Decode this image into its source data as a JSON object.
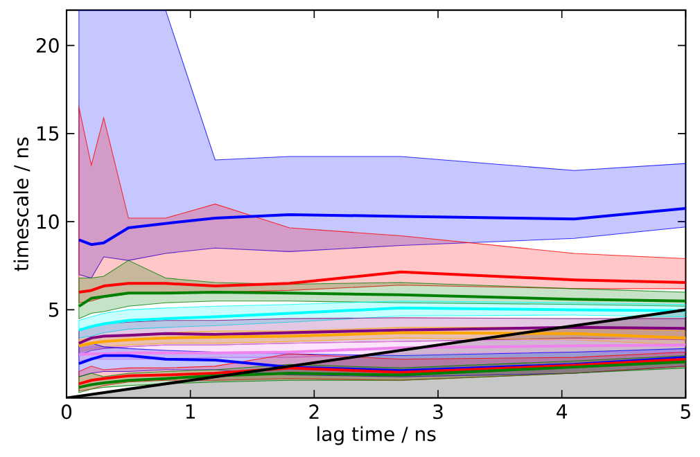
{
  "chart_data": {
    "type": "line",
    "xlabel": "lag time / ns",
    "ylabel": "timescale / ns",
    "x": [
      0.1,
      0.2,
      0.3,
      0.5,
      0.8,
      1.2,
      1.8,
      2.7,
      4.1,
      5.0
    ],
    "xlim": [
      0,
      5
    ],
    "ylim": [
      0,
      22
    ],
    "xticks": [
      0,
      1,
      2,
      3,
      4,
      5
    ],
    "yticks": [
      5,
      10,
      15,
      20
    ],
    "grid": false,
    "line_style": "solid",
    "marker": "none",
    "series": [
      {
        "color": "#0000ff",
        "values": [
          8.97,
          8.7,
          8.8,
          9.65,
          9.9,
          10.2,
          10.4,
          10.3,
          10.15,
          10.75
        ],
        "lower": [
          7.0,
          6.8,
          8.0,
          7.8,
          8.2,
          8.5,
          8.3,
          8.65,
          9.05,
          9.7
        ],
        "upper": [
          22,
          22,
          22,
          22,
          22,
          13.5,
          13.7,
          13.7,
          12.9,
          13.3
        ]
      },
      {
        "color": "#ff0000",
        "values": [
          6.0,
          6.1,
          6.35,
          6.5,
          6.5,
          6.35,
          6.5,
          7.15,
          6.7,
          6.55
        ],
        "lower": [
          5.4,
          5.5,
          5.7,
          5.9,
          6.0,
          6.0,
          6.1,
          6.4,
          6.2,
          6.2
        ],
        "upper": [
          16.5,
          13.2,
          15.9,
          10.2,
          10.2,
          11.0,
          9.65,
          9.2,
          8.2,
          7.9
        ]
      },
      {
        "color": "#008000",
        "values": [
          5.2,
          5.65,
          5.75,
          5.95,
          5.95,
          6.0,
          5.95,
          5.85,
          5.6,
          5.5
        ],
        "lower": [
          4.5,
          4.8,
          4.9,
          5.2,
          5.4,
          5.5,
          5.5,
          5.4,
          5.3,
          5.2
        ],
        "upper": [
          6.8,
          6.8,
          6.9,
          7.8,
          6.8,
          6.55,
          6.45,
          6.55,
          6.2,
          6.0
        ]
      },
      {
        "color": "#00ffff",
        "values": [
          3.85,
          4.05,
          4.2,
          4.4,
          4.5,
          4.6,
          4.8,
          5.1,
          5.0,
          4.95
        ],
        "lower": [
          3.4,
          3.5,
          3.7,
          3.9,
          4.0,
          4.1,
          4.3,
          4.65,
          4.7,
          4.6
        ],
        "upper": [
          4.4,
          4.6,
          4.8,
          5.0,
          5.1,
          5.2,
          5.3,
          5.5,
          5.4,
          5.3
        ]
      },
      {
        "color": "#800080",
        "values": [
          3.1,
          3.4,
          3.5,
          3.55,
          3.65,
          3.6,
          3.7,
          3.85,
          4.0,
          3.95
        ],
        "lower": [
          2.4,
          2.7,
          2.8,
          2.9,
          3.0,
          3.0,
          3.1,
          3.2,
          3.4,
          3.3
        ],
        "upper": [
          3.8,
          4.0,
          4.2,
          4.3,
          4.4,
          4.4,
          4.5,
          4.55,
          4.5,
          4.5
        ]
      },
      {
        "color": "#ffa500",
        "values": [
          2.95,
          3.1,
          3.2,
          3.3,
          3.4,
          3.45,
          3.5,
          3.7,
          3.65,
          3.4
        ],
        "lower": [
          2.6,
          2.8,
          2.9,
          3.0,
          3.1,
          3.1,
          3.2,
          3.4,
          3.3,
          3.0
        ],
        "upper": [
          3.3,
          3.4,
          3.5,
          3.6,
          3.7,
          3.8,
          3.8,
          4.0,
          4.0,
          3.8
        ]
      },
      {
        "color": "#ee82ee",
        "values": [
          2.45,
          2.5,
          2.5,
          2.55,
          2.55,
          2.55,
          2.6,
          2.85,
          2.95,
          3.0
        ],
        "lower": [
          2.1,
          2.2,
          2.2,
          2.2,
          2.2,
          2.3,
          2.3,
          2.5,
          2.6,
          2.6
        ],
        "upper": [
          2.8,
          2.9,
          2.9,
          2.9,
          3.0,
          3.0,
          3.1,
          3.2,
          3.3,
          3.4
        ]
      },
      {
        "color": "#0000fe",
        "values": [
          1.95,
          2.2,
          2.4,
          2.4,
          2.2,
          2.15,
          1.75,
          1.55,
          1.9,
          2.3
        ],
        "lower": [
          1.2,
          1.4,
          1.5,
          1.5,
          1.6,
          1.6,
          1.3,
          1.2,
          1.4,
          1.8
        ],
        "upper": [
          3.0,
          3.1,
          2.9,
          2.8,
          2.7,
          2.6,
          2.5,
          2.4,
          2.6,
          2.8
        ]
      },
      {
        "color": "#fe0000",
        "values": [
          0.8,
          1.0,
          1.1,
          1.25,
          1.3,
          1.4,
          1.7,
          1.45,
          1.85,
          2.2
        ],
        "lower": [
          0.4,
          0.5,
          0.7,
          0.9,
          1.0,
          1.0,
          1.1,
          1.0,
          1.4,
          1.8
        ],
        "upper": [
          1.5,
          1.8,
          1.6,
          1.7,
          1.7,
          1.8,
          2.5,
          2.2,
          2.3,
          2.6
        ]
      },
      {
        "color": "#007f00",
        "values": [
          0.6,
          0.75,
          0.85,
          1.0,
          1.1,
          1.25,
          1.4,
          1.3,
          1.75,
          2.05
        ],
        "lower": [
          0.3,
          0.5,
          0.6,
          0.7,
          0.8,
          0.9,
          1.0,
          1.0,
          1.4,
          1.7
        ],
        "upper": [
          1.2,
          1.4,
          1.2,
          1.4,
          1.5,
          1.6,
          1.9,
          1.7,
          2.1,
          2.4
        ]
      },
      {
        "color": "#000000",
        "x": [
          0,
          5
        ],
        "values": [
          0,
          5
        ],
        "lower": [
          0,
          0
        ],
        "upper": [
          0,
          5
        ]
      }
    ]
  }
}
